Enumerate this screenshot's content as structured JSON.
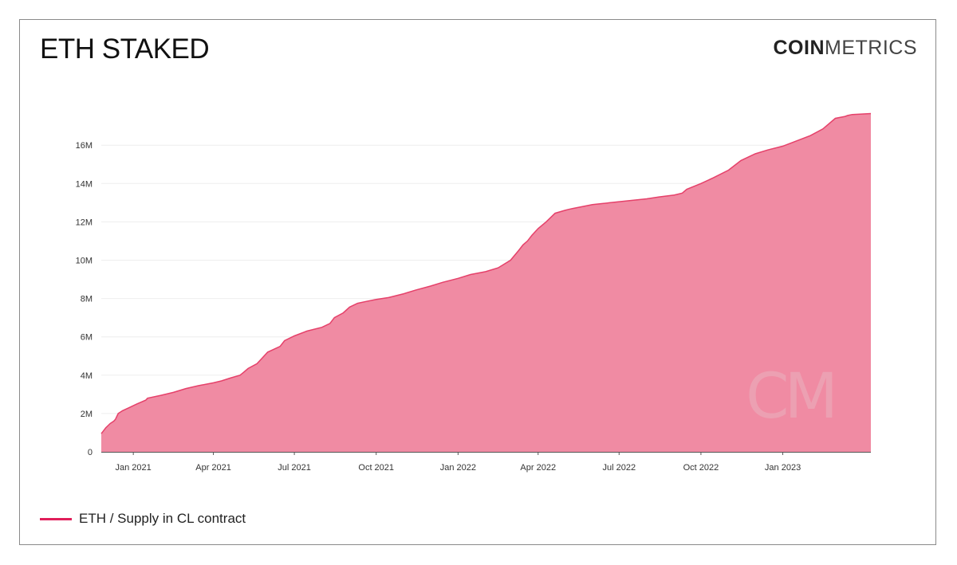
{
  "header": {
    "title": "ETH STAKED",
    "logo_bold": "COIN",
    "logo_light": "METRICS"
  },
  "watermark": "CM",
  "colors": {
    "area_fill": "#f08ba3",
    "line": "#e5416a",
    "legend": "#e01e5a",
    "grid": "#eeeeee",
    "axis": "#555555"
  },
  "legend": {
    "label": "ETH / Supply in CL contract"
  },
  "chart_data": {
    "type": "area",
    "title": "ETH STAKED",
    "xlabel": "",
    "ylabel": "",
    "xlim": [
      "2020-11-26",
      "2023-04-10"
    ],
    "ylim": [
      0,
      18000000
    ],
    "grid": true,
    "legend_position": "bottom-left",
    "y_ticks": [
      0,
      2000000,
      4000000,
      6000000,
      8000000,
      10000000,
      12000000,
      14000000,
      16000000
    ],
    "y_tick_labels": [
      "0",
      "2M",
      "4M",
      "6M",
      "8M",
      "10M",
      "12M",
      "14M",
      "16M"
    ],
    "x_ticks": [
      "2021-01-01",
      "2021-04-01",
      "2021-07-01",
      "2021-10-01",
      "2022-01-01",
      "2022-04-01",
      "2022-07-01",
      "2022-10-01",
      "2023-01-01"
    ],
    "x_tick_labels": [
      "Jan 2021",
      "Apr 2021",
      "Jul 2021",
      "Oct 2021",
      "Jan 2022",
      "Apr 2022",
      "Jul 2022",
      "Oct 2022",
      "Jan 2023"
    ],
    "series": [
      {
        "name": "ETH / Supply in CL contract",
        "x": [
          "2020-11-26",
          "2020-12-01",
          "2020-12-06",
          "2020-12-10",
          "2020-12-12",
          "2020-12-15",
          "2020-12-20",
          "2020-12-27",
          "2021-01-05",
          "2021-01-15",
          "2021-01-17",
          "2021-02-01",
          "2021-02-15",
          "2021-03-01",
          "2021-03-15",
          "2021-04-01",
          "2021-04-10",
          "2021-04-20",
          "2021-05-01",
          "2021-05-05",
          "2021-05-10",
          "2021-05-20",
          "2021-05-25",
          "2021-06-01",
          "2021-06-15",
          "2021-06-20",
          "2021-07-01",
          "2021-07-15",
          "2021-08-01",
          "2021-08-10",
          "2021-08-15",
          "2021-08-25",
          "2021-09-01",
          "2021-09-10",
          "2021-09-20",
          "2021-10-01",
          "2021-10-15",
          "2021-11-01",
          "2021-11-15",
          "2021-12-01",
          "2021-12-15",
          "2022-01-01",
          "2022-01-15",
          "2022-02-01",
          "2022-02-15",
          "2022-03-01",
          "2022-03-10",
          "2022-03-15",
          "2022-03-20",
          "2022-03-25",
          "2022-04-01",
          "2022-04-10",
          "2022-04-20",
          "2022-05-01",
          "2022-05-05",
          "2022-05-10",
          "2022-06-01",
          "2022-07-01",
          "2022-08-01",
          "2022-08-15",
          "2022-09-01",
          "2022-09-10",
          "2022-09-15",
          "2022-10-01",
          "2022-10-15",
          "2022-11-01",
          "2022-11-15",
          "2022-12-01",
          "2022-12-15",
          "2023-01-01",
          "2023-01-15",
          "2023-02-01",
          "2023-02-15",
          "2023-03-01",
          "2023-03-12",
          "2023-03-15",
          "2023-03-20",
          "2023-04-10"
        ],
        "values": [
          950000,
          1250000,
          1480000,
          1600000,
          1700000,
          2000000,
          2150000,
          2300000,
          2500000,
          2700000,
          2800000,
          2950000,
          3100000,
          3300000,
          3450000,
          3600000,
          3700000,
          3850000,
          4000000,
          4150000,
          4350000,
          4600000,
          4850000,
          5200000,
          5500000,
          5800000,
          6050000,
          6300000,
          6500000,
          6700000,
          7000000,
          7250000,
          7550000,
          7750000,
          7850000,
          7950000,
          8050000,
          8250000,
          8450000,
          8650000,
          8850000,
          9050000,
          9250000,
          9400000,
          9600000,
          10000000,
          10500000,
          10800000,
          11000000,
          11300000,
          11650000,
          12000000,
          12450000,
          12600000,
          12650000,
          12700000,
          12900000,
          13050000,
          13200000,
          13300000,
          13400000,
          13500000,
          13700000,
          14000000,
          14300000,
          14700000,
          15200000,
          15550000,
          15750000,
          15950000,
          16200000,
          16500000,
          16850000,
          17400000,
          17500000,
          17550000,
          17600000,
          17650000
        ]
      }
    ]
  }
}
